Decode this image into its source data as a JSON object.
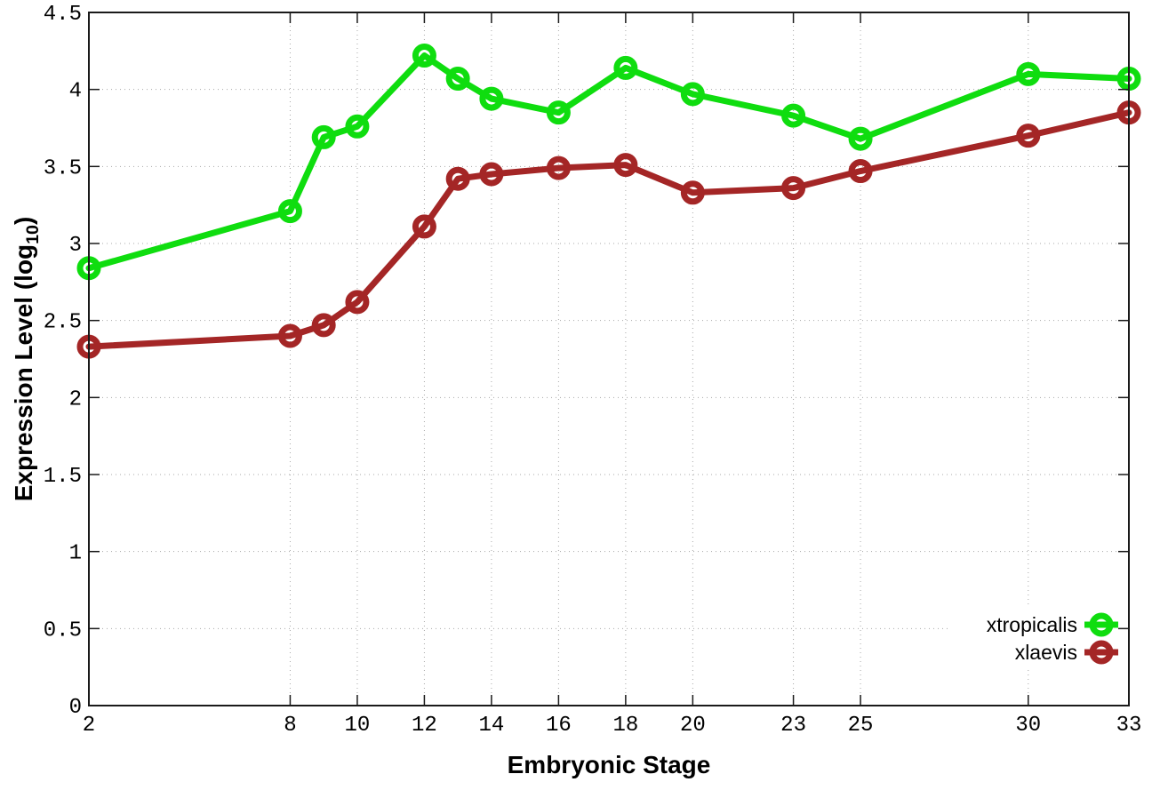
{
  "chart_data": {
    "type": "line",
    "title": "",
    "xlabel": "Embryonic Stage",
    "ylabel": "Expression Level (log10)",
    "ylabel_parts": {
      "main": "Expression Level (log",
      "sub": "10",
      "close": ")"
    },
    "x": [
      2,
      8,
      9,
      10,
      12,
      13,
      14,
      16,
      18,
      20,
      23,
      25,
      30,
      33
    ],
    "series": [
      {
        "name": "xtropicalis",
        "color": "#0fdd0f",
        "values": [
          2.84,
          3.21,
          3.69,
          3.76,
          4.22,
          4.07,
          3.94,
          3.85,
          4.14,
          3.97,
          3.83,
          3.68,
          4.1,
          4.07
        ]
      },
      {
        "name": "xlaevis",
        "color": "#a42626",
        "values": [
          2.33,
          2.4,
          2.47,
          2.62,
          3.11,
          3.42,
          3.45,
          3.49,
          3.51,
          3.33,
          3.36,
          3.47,
          3.7,
          3.85
        ]
      }
    ],
    "xlim": [
      2,
      33
    ],
    "ylim": [
      0,
      4.5
    ],
    "xticks": [
      2,
      8,
      10,
      12,
      14,
      16,
      18,
      20,
      23,
      25,
      30,
      33
    ],
    "yticks": [
      "0",
      "0.5",
      "1",
      "1.5",
      "2",
      "2.5",
      "3",
      "3.5",
      "4",
      "4.5"
    ],
    "grid": true,
    "legend_position": "bottom-right",
    "style": {
      "axis_color": "#1a1a1a",
      "grid_color": "#a8a8a8",
      "text_color": "#000000",
      "background": "#ffffff"
    }
  }
}
